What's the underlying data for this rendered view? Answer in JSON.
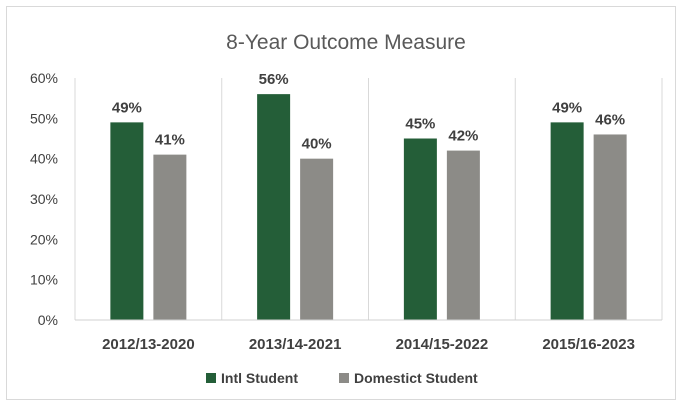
{
  "chart_data": {
    "type": "bar",
    "title": "8-Year Outcome Measure",
    "categories": [
      "2012/13-2020",
      "2013/14-2021",
      "2014/15-2022",
      "2015/16-2023"
    ],
    "series": [
      {
        "name": "Intl Student",
        "values": [
          49,
          56,
          45,
          49
        ],
        "color": "#245E38"
      },
      {
        "name": "Domestict Student",
        "values": [
          41,
          40,
          42,
          46
        ],
        "color": "#8C8B87"
      }
    ],
    "data_labels": {
      "Intl Student": [
        "49%",
        "56%",
        "45%",
        "49%"
      ],
      "Domestict Student": [
        "41%",
        "40%",
        "42%",
        "46%"
      ]
    },
    "y_ticks": [
      "0%",
      "10%",
      "20%",
      "30%",
      "40%",
      "50%",
      "60%"
    ],
    "y_tick_values": [
      0,
      10,
      20,
      30,
      40,
      50,
      60
    ],
    "ylim": [
      0,
      60
    ],
    "ylabel": "",
    "xlabel": "",
    "grid": false,
    "category_separators": true,
    "legend_position": "bottom"
  }
}
